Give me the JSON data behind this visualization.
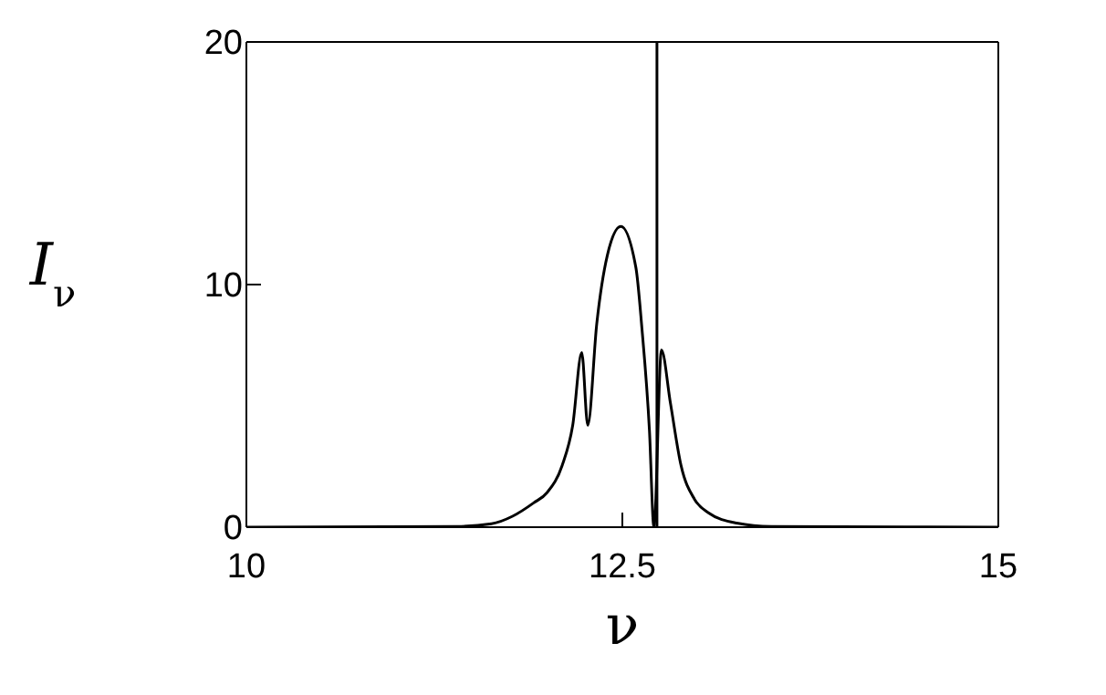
{
  "chart_data": {
    "type": "line",
    "xlabel": "ν",
    "ylabel": "I$_{ν}$",
    "x": [
      10,
      11.4,
      11.63,
      11.77,
      11.91,
      12.0,
      12.1,
      12.17,
      12.23,
      12.27,
      12.33,
      12.4,
      12.49,
      12.59,
      12.63,
      12.68,
      12.71,
      12.76,
      12.82,
      12.89,
      12.98,
      13.07,
      13.26,
      13.49,
      15
    ],
    "series": [
      {
        "color": "#000000",
        "values": [
          0,
          0.03,
          0.14,
          0.45,
          1.0,
          1.43,
          2.55,
          4.2,
          7.2,
          4.2,
          8.4,
          11.2,
          12.4,
          10.7,
          8.2,
          4.0,
          0,
          7.3,
          5.1,
          2.55,
          1.15,
          0.6,
          0.17,
          0.03,
          0
        ]
      }
    ],
    "ref_lines": [
      {
        "axis": "x",
        "value": 12.73,
        "color": "#000000"
      }
    ],
    "xlim": [
      10,
      15
    ],
    "xticks": [
      10,
      12.5,
      15
    ],
    "ylim": [
      0,
      20
    ],
    "yticks": [
      0,
      10,
      20
    ],
    "grid": false,
    "legend": false,
    "marker": "none",
    "line_style": "solid"
  }
}
